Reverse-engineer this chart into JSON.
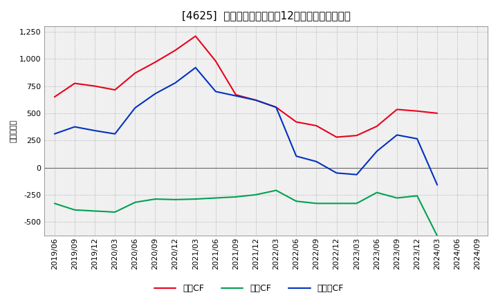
{
  "title": "[4625]  キャッシュフローの12か月移動合計の推移",
  "ylabel": "（百万円）",
  "x_labels": [
    "2019/06",
    "2019/09",
    "2019/12",
    "2020/03",
    "2020/06",
    "2020/09",
    "2020/12",
    "2021/03",
    "2021/06",
    "2021/09",
    "2021/12",
    "2022/03",
    "2022/06",
    "2022/09",
    "2022/12",
    "2023/03",
    "2023/06",
    "2023/09",
    "2023/12",
    "2024/03",
    "2024/06",
    "2024/09"
  ],
  "営業CF": [
    650,
    775,
    750,
    715,
    870,
    970,
    1080,
    1210,
    980,
    670,
    620,
    555,
    420,
    385,
    280,
    295,
    380,
    535,
    520,
    500,
    null,
    null
  ],
  "投資CF": [
    -330,
    -390,
    -400,
    -410,
    -320,
    -290,
    -295,
    -290,
    -280,
    -270,
    -250,
    -210,
    -310,
    -330,
    -330,
    -330,
    -230,
    -280,
    -260,
    -630,
    null,
    null
  ],
  "フリーCF": [
    310,
    375,
    340,
    310,
    550,
    680,
    780,
    920,
    700,
    660,
    620,
    555,
    105,
    55,
    -50,
    -65,
    150,
    300,
    265,
    -160,
    null,
    null
  ],
  "line_colors": {
    "営業CF": "#e8001c",
    "投資CF": "#00a050",
    "フリーCF": "#0030c0"
  },
  "ylim": [
    -625,
    1300
  ],
  "yticks": [
    -500,
    -250,
    0,
    250,
    500,
    750,
    1000,
    1250
  ],
  "background_color": "#ffffff",
  "plot_bg_color": "#f0f0f0",
  "grid_color": "#aaaaaa",
  "title_fontsize": 11,
  "axis_fontsize": 8,
  "legend_fontsize": 9
}
